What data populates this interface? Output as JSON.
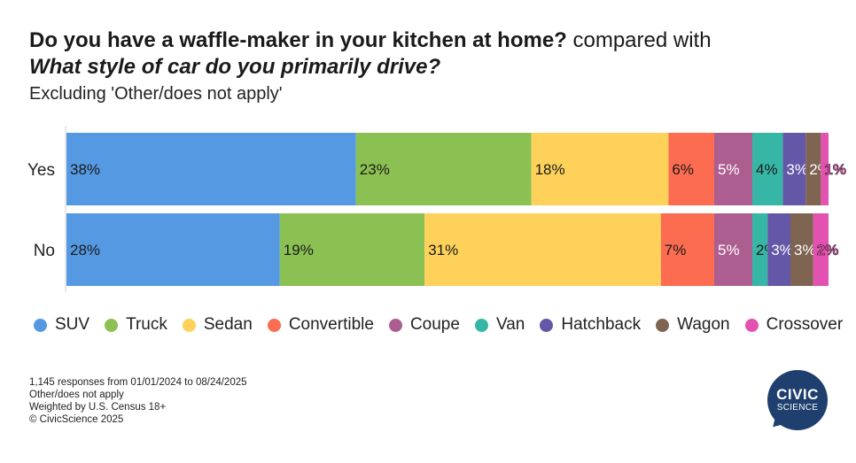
{
  "title": {
    "question1": "Do you have a waffle-maker in your kitchen at home?",
    "connector": " compared with",
    "question2": "What style of car do you primarily drive?"
  },
  "subtitle": "Excluding 'Other/does not apply'",
  "colors": {
    "SUV": "#5599e3",
    "Truck": "#8bc152",
    "Sedan": "#fdd15a",
    "Convertible": "#fb6c50",
    "Coupe": "#ad5e91",
    "Van": "#36b6a4",
    "Hatchback": "#6557a8",
    "Wagon": "#7f6452",
    "Crossover": "#e352b0"
  },
  "chart_data": {
    "type": "bar",
    "orientation": "horizontal",
    "stacked": true,
    "normalized": true,
    "categories": [
      "Yes",
      "No"
    ],
    "series": [
      {
        "name": "SUV",
        "values": [
          38,
          28
        ]
      },
      {
        "name": "Truck",
        "values": [
          23,
          19
        ]
      },
      {
        "name": "Sedan",
        "values": [
          18,
          31
        ]
      },
      {
        "name": "Convertible",
        "values": [
          6,
          7
        ]
      },
      {
        "name": "Coupe",
        "values": [
          5,
          5
        ]
      },
      {
        "name": "Van",
        "values": [
          4,
          2
        ]
      },
      {
        "name": "Hatchback",
        "values": [
          3,
          3
        ]
      },
      {
        "name": "Wagon",
        "values": [
          2,
          3
        ]
      },
      {
        "name": "Crossover",
        "values": [
          1,
          2
        ]
      }
    ],
    "value_format": "percent",
    "legend_position": "bottom",
    "grid": false
  },
  "footer": {
    "line1": "1,145 responses from 01/01/2024 to 08/24/2025",
    "line2": "Other/does not apply",
    "line3": "Weighted by U.S. Census 18+",
    "line4": "© CivicScience 2025"
  },
  "logo": {
    "line1": "CIVIC",
    "line2": "SCIENCE"
  }
}
